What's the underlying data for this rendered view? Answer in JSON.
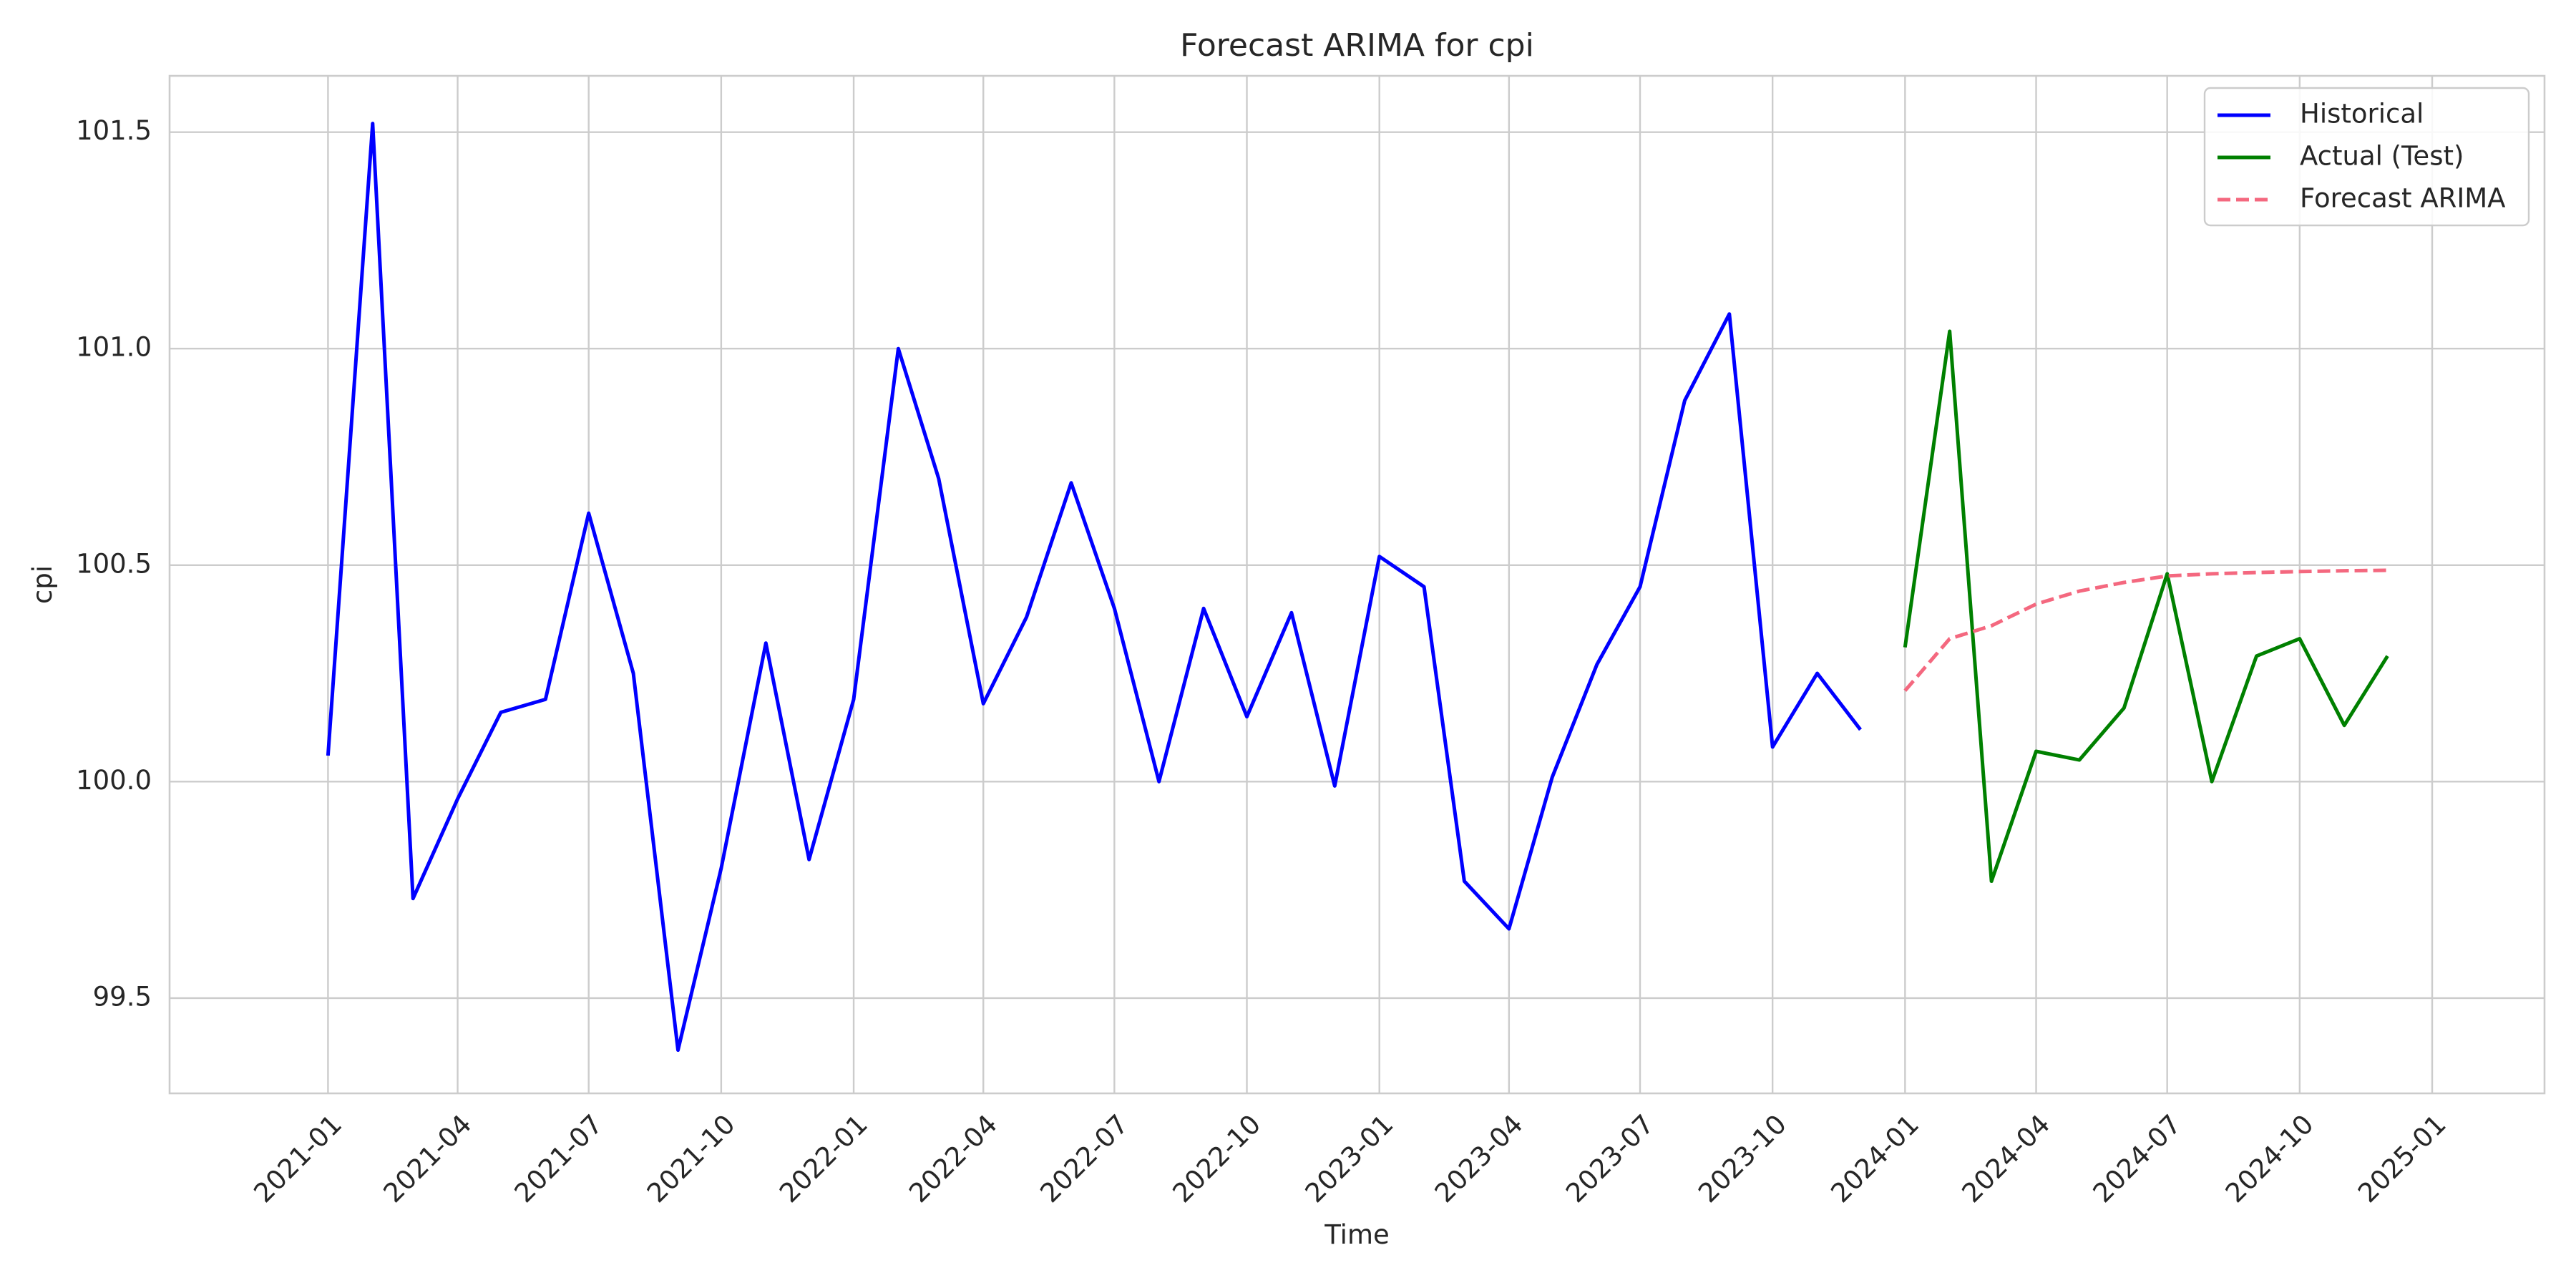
{
  "chart_data": {
    "type": "line",
    "title": "Forecast ARIMA for cpi",
    "xlabel": "Time",
    "ylabel": "cpi",
    "grid": true,
    "legend_position": "top-right",
    "ylim": [
      99.28,
      101.63
    ],
    "xlim": [
      "2020-09-13",
      "2025-03-20"
    ],
    "x_ticks": [
      "2021-01",
      "2021-04",
      "2021-07",
      "2021-10",
      "2022-01",
      "2022-04",
      "2022-07",
      "2022-10",
      "2023-01",
      "2023-04",
      "2023-07",
      "2023-10",
      "2024-01",
      "2024-04",
      "2024-07",
      "2024-10",
      "2025-01"
    ],
    "y_ticks": [
      "99.5",
      "100.0",
      "100.5",
      "101.0",
      "101.5"
    ],
    "series": [
      {
        "name": "Historical",
        "color": "#0000ff",
        "style": "solid",
        "x": [
          "2021-01",
          "2021-02",
          "2021-03",
          "2021-04",
          "2021-05",
          "2021-06",
          "2021-07",
          "2021-08",
          "2021-09",
          "2021-10",
          "2021-11",
          "2021-12",
          "2022-01",
          "2022-02",
          "2022-03",
          "2022-04",
          "2022-05",
          "2022-06",
          "2022-07",
          "2022-08",
          "2022-09",
          "2022-10",
          "2022-11",
          "2022-12",
          "2023-01",
          "2023-02",
          "2023-03",
          "2023-04",
          "2023-05",
          "2023-06",
          "2023-07",
          "2023-08",
          "2023-09",
          "2023-10",
          "2023-11",
          "2023-12"
        ],
        "y": [
          100.06,
          101.52,
          99.73,
          99.96,
          100.16,
          100.19,
          100.62,
          100.25,
          99.38,
          99.8,
          100.32,
          99.82,
          100.19,
          101.0,
          100.7,
          100.18,
          100.38,
          100.69,
          100.4,
          100.0,
          100.4,
          100.15,
          100.39,
          99.99,
          100.52,
          100.45,
          99.77,
          99.66,
          100.01,
          100.27,
          100.45,
          100.88,
          101.08,
          100.08,
          100.25,
          100.12
        ]
      },
      {
        "name": "Actual (Test)",
        "color": "#008000",
        "style": "solid",
        "x": [
          "2024-01",
          "2024-02",
          "2024-03",
          "2024-04",
          "2024-05",
          "2024-06",
          "2024-07",
          "2024-08",
          "2024-09",
          "2024-10",
          "2024-11",
          "2024-12"
        ],
        "y": [
          100.31,
          101.04,
          99.77,
          100.07,
          100.05,
          100.17,
          100.48,
          100.0,
          100.29,
          100.33,
          100.13,
          100.29
        ]
      },
      {
        "name": "Forecast ARIMA",
        "color": "#f4687f",
        "style": "dashed",
        "x": [
          "2024-01",
          "2024-02",
          "2024-03",
          "2024-04",
          "2024-05",
          "2024-06",
          "2024-07",
          "2024-08",
          "2024-09",
          "2024-10",
          "2024-11",
          "2024-12"
        ],
        "y": [
          100.21,
          100.33,
          100.36,
          100.41,
          100.44,
          100.46,
          100.475,
          100.48,
          100.483,
          100.485,
          100.487,
          100.488
        ]
      }
    ]
  }
}
